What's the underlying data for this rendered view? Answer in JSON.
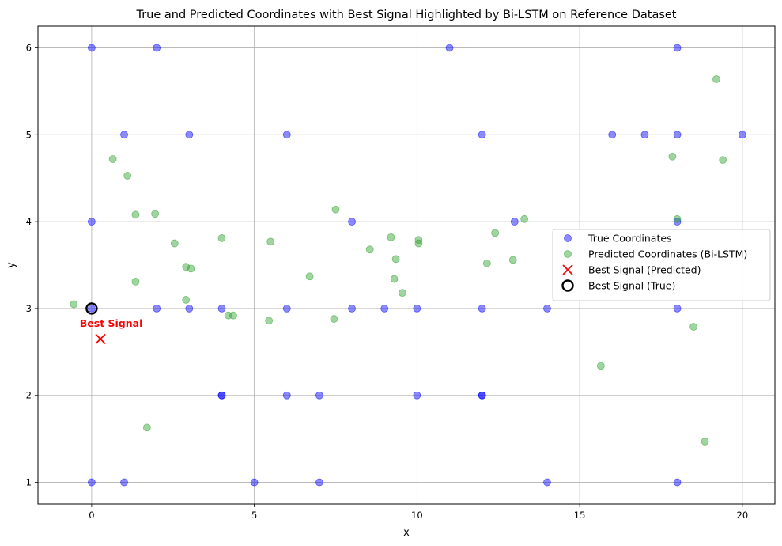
{
  "chart_data": {
    "type": "scatter",
    "title": "True and Predicted Coordinates with Best Signal Highlighted by Bi-LSTM on Reference Dataset",
    "xlabel": "x",
    "ylabel": "y",
    "xlim": [
      -1.65,
      21.0
    ],
    "ylim": [
      0.75,
      6.25
    ],
    "xticks": [
      0,
      5,
      10,
      15,
      20
    ],
    "yticks": [
      1,
      2,
      3,
      4,
      5,
      6
    ],
    "grid": true,
    "legend_position": "center-right",
    "series": [
      {
        "name": "True Coordinates",
        "color": "#0000ff",
        "marker": "circle",
        "points": [
          [
            0,
            6
          ],
          [
            2,
            6
          ],
          [
            11,
            6
          ],
          [
            18,
            6
          ],
          [
            1,
            5
          ],
          [
            3,
            5
          ],
          [
            6,
            5
          ],
          [
            12,
            5
          ],
          [
            16,
            5
          ],
          [
            17,
            5
          ],
          [
            18,
            5
          ],
          [
            20,
            5
          ],
          [
            0,
            4
          ],
          [
            8,
            4
          ],
          [
            13,
            4
          ],
          [
            18,
            4
          ],
          [
            0,
            3
          ],
          [
            2,
            3
          ],
          [
            3,
            3
          ],
          [
            4,
            3
          ],
          [
            6,
            3
          ],
          [
            8,
            3
          ],
          [
            9,
            3
          ],
          [
            10,
            3
          ],
          [
            12,
            3
          ],
          [
            14,
            3
          ],
          [
            18,
            3
          ],
          [
            4,
            2
          ],
          [
            4,
            2
          ],
          [
            6,
            2
          ],
          [
            7,
            2
          ],
          [
            10,
            2
          ],
          [
            12,
            2
          ],
          [
            12,
            2
          ],
          [
            0,
            1
          ],
          [
            1,
            1
          ],
          [
            5,
            1
          ],
          [
            7,
            1
          ],
          [
            14,
            1
          ],
          [
            18,
            1
          ]
        ]
      },
      {
        "name": "Predicted Coordinates (Bi-LSTM)",
        "color": "#2ca02c",
        "marker": "circle",
        "points": [
          [
            19.2,
            5.64
          ],
          [
            17.85,
            4.75
          ],
          [
            19.4,
            4.71
          ],
          [
            0.65,
            4.72
          ],
          [
            1.1,
            4.53
          ],
          [
            1.35,
            4.08
          ],
          [
            1.95,
            4.09
          ],
          [
            7.5,
            4.14
          ],
          [
            13.3,
            4.03
          ],
          [
            18.0,
            4.03
          ],
          [
            12.4,
            3.87
          ],
          [
            2.55,
            3.75
          ],
          [
            4.0,
            3.81
          ],
          [
            5.5,
            3.77
          ],
          [
            8.55,
            3.68
          ],
          [
            9.2,
            3.82
          ],
          [
            10.05,
            3.79
          ],
          [
            10.05,
            3.75
          ],
          [
            9.35,
            3.57
          ],
          [
            12.15,
            3.52
          ],
          [
            12.95,
            3.56
          ],
          [
            2.9,
            3.48
          ],
          [
            3.05,
            3.46
          ],
          [
            1.35,
            3.31
          ],
          [
            6.7,
            3.37
          ],
          [
            9.3,
            3.34
          ],
          [
            9.55,
            3.18
          ],
          [
            -0.55,
            3.05
          ],
          [
            2.9,
            3.1
          ],
          [
            4.2,
            2.92
          ],
          [
            4.35,
            2.92
          ],
          [
            5.45,
            2.86
          ],
          [
            7.45,
            2.88
          ],
          [
            18.5,
            2.79
          ],
          [
            15.65,
            2.34
          ],
          [
            1.7,
            1.63
          ],
          [
            18.85,
            1.47
          ]
        ]
      },
      {
        "name": "Best Signal (Predicted)",
        "color": "#ff0000",
        "marker": "x",
        "points": [
          [
            0.27,
            2.65
          ]
        ]
      },
      {
        "name": "Best Signal (True)",
        "color": "#000000",
        "marker": "ring",
        "points": [
          [
            0,
            3
          ]
        ]
      }
    ],
    "annotation": {
      "text": "Best Signal",
      "color": "#ff0000",
      "x": 0.6,
      "y": 2.79
    }
  }
}
